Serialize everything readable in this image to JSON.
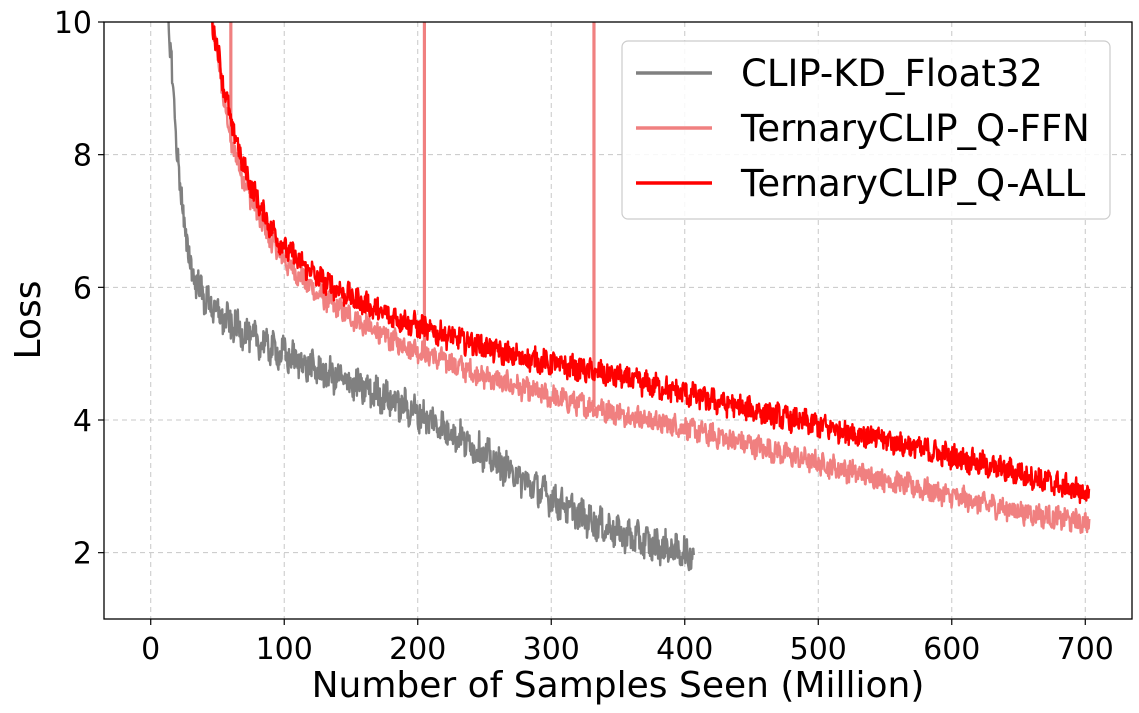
{
  "chart_data": {
    "type": "line",
    "title": "",
    "xlabel": "Number of Samples Seen (Million)",
    "ylabel": "Loss",
    "xlim": [
      -35,
      735
    ],
    "ylim": [
      1,
      10
    ],
    "xticks": [
      0,
      100,
      200,
      300,
      400,
      500,
      600,
      700
    ],
    "yticks": [
      2,
      4,
      6,
      8,
      10
    ],
    "xtick_labels": [
      "0",
      "100",
      "200",
      "300",
      "400",
      "500",
      "600",
      "700"
    ],
    "ytick_labels": [
      "2",
      "4",
      "6",
      "8",
      "10"
    ],
    "grid": true,
    "legend_position": "top-right",
    "series": [
      {
        "name": "CLIP-KD_Float32",
        "color": "#808080",
        "noise": 0.22,
        "points": [
          [
            12,
            10.3
          ],
          [
            15,
            9.5
          ],
          [
            18,
            8.6
          ],
          [
            22,
            7.5
          ],
          [
            26,
            6.8
          ],
          [
            30,
            6.3
          ],
          [
            35,
            6.05
          ],
          [
            40,
            5.85
          ],
          [
            50,
            5.6
          ],
          [
            60,
            5.45
          ],
          [
            75,
            5.25
          ],
          [
            100,
            4.98
          ],
          [
            125,
            4.75
          ],
          [
            150,
            4.55
          ],
          [
            175,
            4.35
          ],
          [
            200,
            4.1
          ],
          [
            225,
            3.82
          ],
          [
            250,
            3.48
          ],
          [
            275,
            3.15
          ],
          [
            300,
            2.82
          ],
          [
            325,
            2.52
          ],
          [
            350,
            2.3
          ],
          [
            375,
            2.12
          ],
          [
            400,
            2.0
          ],
          [
            407,
            1.98
          ]
        ]
      },
      {
        "name": "TernaryCLIP_Q-FFN",
        "color": "#f08080",
        "noise": 0.15,
        "points": [
          [
            45,
            10.2
          ],
          [
            50,
            9.5
          ],
          [
            55,
            8.8
          ],
          [
            60,
            8.2
          ],
          [
            70,
            7.6
          ],
          [
            80,
            7.1
          ],
          [
            90,
            6.7
          ],
          [
            100,
            6.4
          ],
          [
            125,
            5.9
          ],
          [
            150,
            5.55
          ],
          [
            175,
            5.25
          ],
          [
            200,
            5.05
          ],
          [
            225,
            4.85
          ],
          [
            250,
            4.65
          ],
          [
            275,
            4.5
          ],
          [
            300,
            4.35
          ],
          [
            350,
            4.1
          ],
          [
            400,
            3.88
          ],
          [
            450,
            3.62
          ],
          [
            500,
            3.35
          ],
          [
            550,
            3.1
          ],
          [
            600,
            2.85
          ],
          [
            650,
            2.62
          ],
          [
            700,
            2.45
          ],
          [
            703,
            2.42
          ]
        ],
        "spikes": [
          60,
          205,
          332
        ]
      },
      {
        "name": "TernaryCLIP_Q-ALL",
        "color": "#ff0000",
        "noise": 0.16,
        "points": [
          [
            44,
            10.2
          ],
          [
            50,
            9.6
          ],
          [
            55,
            9.0
          ],
          [
            60,
            8.5
          ],
          [
            70,
            7.8
          ],
          [
            80,
            7.3
          ],
          [
            90,
            6.9
          ],
          [
            100,
            6.6
          ],
          [
            125,
            6.15
          ],
          [
            150,
            5.85
          ],
          [
            175,
            5.6
          ],
          [
            200,
            5.42
          ],
          [
            225,
            5.25
          ],
          [
            250,
            5.1
          ],
          [
            275,
            4.95
          ],
          [
            300,
            4.85
          ],
          [
            350,
            4.65
          ],
          [
            400,
            4.4
          ],
          [
            450,
            4.15
          ],
          [
            500,
            3.92
          ],
          [
            550,
            3.7
          ],
          [
            600,
            3.45
          ],
          [
            650,
            3.2
          ],
          [
            700,
            2.9
          ],
          [
            703,
            2.85
          ]
        ]
      }
    ]
  }
}
